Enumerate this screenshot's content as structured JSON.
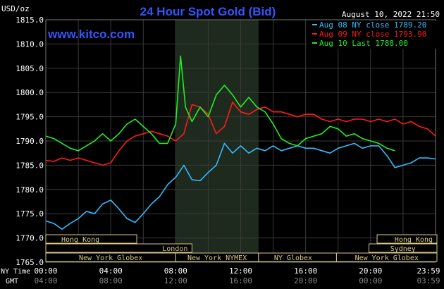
{
  "header": {
    "title": "24 Hour Spot Gold (Bid)",
    "unit": "USD/oz",
    "timestamp": "August 10, 2022 21:50",
    "website": "www.kitco.com"
  },
  "legend": [
    {
      "label": "Aug 08 NY close 1789.20",
      "color": "#33bbff"
    },
    {
      "label": "Aug 09 NY close 1793.90",
      "color": "#ff1a1a"
    },
    {
      "label": "Aug 10 Last 1788.00",
      "color": "#22ee22"
    }
  ],
  "market_sessions": {
    "row1": [
      "Hong Kong",
      "Hong Kong"
    ],
    "row2": [
      "London",
      "Sydney"
    ],
    "row3": [
      "New York Globex",
      "New York NYMEX",
      "NY Globex",
      "New York Globex"
    ]
  },
  "axis_titles": {
    "ny_time": "NY Time",
    "gmt": "GMT"
  },
  "ny_time_labels": [
    "00:00",
    "04:00",
    "08:00",
    "12:00",
    "16:00",
    "20:00",
    "23:59"
  ],
  "gmt_labels": [
    "04:00",
    "08:00",
    "12:00",
    "16:00",
    "20:00",
    "00:00",
    "03:59"
  ],
  "colors": {
    "background": "#000000",
    "grid": "#3a3a3a",
    "title": "#3355ff",
    "text": "#ffffff",
    "session_box": "#d8c98a",
    "highlight": "#1e2a1e"
  },
  "chart_data": {
    "type": "line",
    "title": "24 Hour Spot Gold (Bid)",
    "ylabel": "USD/oz",
    "ylim": [
      1765.0,
      1815.0
    ],
    "yticks": [
      "1765.0",
      "1770.0",
      "1775.0",
      "1780.0",
      "1785.0",
      "1790.0",
      "1795.0",
      "1800.0",
      "1805.0",
      "1810.0",
      "1815.0"
    ],
    "xlim_hours": [
      0,
      24
    ],
    "highlight_hours": [
      8.0,
      13.1
    ],
    "grid": true,
    "legend_position": "top-right",
    "series": [
      {
        "name": "Aug 08 NY close 1789.20",
        "color": "#33bbff",
        "x": [
          0,
          0.5,
          1,
          1.5,
          2,
          2.5,
          3,
          3.5,
          4,
          4.5,
          5,
          5.5,
          6,
          6.5,
          7,
          7.5,
          8,
          8.5,
          9,
          9.5,
          10,
          10.5,
          11,
          11.5,
          12,
          12.5,
          13,
          13.5,
          14,
          14.5,
          15,
          15.5,
          16,
          16.5,
          17,
          17.5,
          18,
          18.5,
          19,
          19.5,
          20,
          20.5,
          21,
          21.5,
          22,
          22.5,
          23,
          23.5,
          24
        ],
        "y": [
          1773.5,
          1773.0,
          1771.8,
          1773.0,
          1774.0,
          1775.5,
          1775.0,
          1777.0,
          1777.8,
          1776.0,
          1774.0,
          1773.2,
          1775.0,
          1777.0,
          1778.5,
          1781.0,
          1782.5,
          1785.0,
          1782.0,
          1781.8,
          1783.5,
          1785.0,
          1789.5,
          1787.5,
          1789.0,
          1787.5,
          1788.5,
          1788.0,
          1789.0,
          1788.0,
          1788.5,
          1789.0,
          1788.5,
          1788.5,
          1788.0,
          1787.5,
          1788.5,
          1789.0,
          1789.5,
          1788.5,
          1789.0,
          1789.0,
          1787.0,
          1784.5,
          1785.0,
          1785.5,
          1786.5,
          1786.5,
          1786.3
        ]
      },
      {
        "name": "Aug 09 NY close 1793.90",
        "color": "#ff1a1a",
        "x": [
          0,
          0.5,
          1,
          1.5,
          2,
          2.5,
          3,
          3.5,
          4,
          4.5,
          5,
          5.5,
          6,
          6.5,
          7,
          7.5,
          8,
          8.5,
          9,
          9.5,
          10,
          10.5,
          11,
          11.5,
          12,
          12.5,
          13,
          13.5,
          14,
          14.5,
          15,
          15.5,
          16,
          16.5,
          17,
          17.5,
          18,
          18.5,
          19,
          19.5,
          20,
          20.5,
          21,
          21.5,
          22,
          22.5,
          23,
          23.5,
          24
        ],
        "y": [
          1786.0,
          1785.8,
          1786.5,
          1786.0,
          1786.5,
          1786.0,
          1785.5,
          1785.0,
          1785.5,
          1788.0,
          1790.0,
          1791.0,
          1791.5,
          1792.0,
          1791.5,
          1791.0,
          1790.0,
          1791.5,
          1797.5,
          1797.0,
          1795.5,
          1791.5,
          1793.0,
          1798.0,
          1796.0,
          1795.5,
          1796.5,
          1797.0,
          1796.0,
          1796.0,
          1795.5,
          1795.0,
          1795.5,
          1795.5,
          1794.5,
          1794.0,
          1794.5,
          1794.0,
          1794.5,
          1794.5,
          1794.0,
          1794.5,
          1794.0,
          1794.5,
          1793.5,
          1794.0,
          1793.0,
          1792.5,
          1791.0
        ]
      },
      {
        "name": "Aug 10 Last 1788.00",
        "color": "#22ee22",
        "x": [
          0,
          0.5,
          1,
          1.5,
          2,
          2.5,
          3,
          3.5,
          4,
          4.5,
          5,
          5.5,
          6,
          6.5,
          7,
          7.5,
          8,
          8.3,
          8.6,
          9,
          9.5,
          10,
          10.5,
          11,
          11.5,
          12,
          12.5,
          13,
          13.5,
          14,
          14.5,
          15,
          15.5,
          16,
          16.5,
          17,
          17.5,
          18,
          18.5,
          19,
          19.5,
          20,
          20.5,
          21,
          21.5
        ],
        "y": [
          1791.0,
          1790.5,
          1789.5,
          1788.5,
          1788.0,
          1789.0,
          1790.0,
          1791.5,
          1790.0,
          1791.5,
          1793.5,
          1794.5,
          1793.0,
          1791.5,
          1789.5,
          1789.5,
          1793.5,
          1807.5,
          1797.0,
          1794.0,
          1797.0,
          1795.0,
          1799.5,
          1801.5,
          1799.5,
          1797.0,
          1799.0,
          1797.0,
          1796.0,
          1793.5,
          1790.5,
          1789.5,
          1789.0,
          1790.5,
          1791.0,
          1791.5,
          1793.0,
          1792.5,
          1791.0,
          1791.5,
          1790.5,
          1790.0,
          1789.5,
          1788.5,
          1788.0
        ]
      }
    ]
  }
}
